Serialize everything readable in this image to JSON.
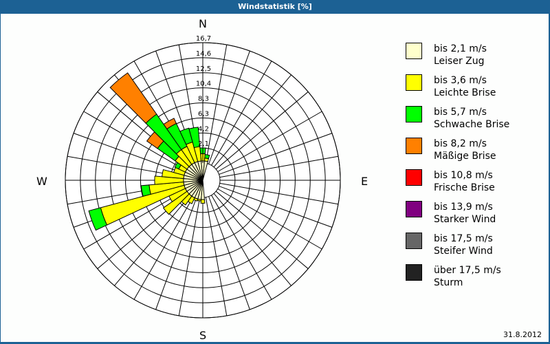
{
  "window": {
    "title": "Windstatistik [%]"
  },
  "footer": {
    "date": "31.8.2012"
  },
  "compass": {
    "n": "N",
    "e": "E",
    "s": "S",
    "w": "W"
  },
  "chart_data": {
    "type": "polar-stacked-bar (wind rose)",
    "title": "Windstatistik [%]",
    "radial_ticks": [
      "2,1",
      "4,2",
      "6,3",
      "8,3",
      "10,4",
      "12,5",
      "14,6",
      "16,7"
    ],
    "radial_max": 16.7,
    "sector_width_deg": 10,
    "classes": [
      {
        "label": "bis 2,1 m/s",
        "name": "Leiser Zug",
        "color": "#ffffcc"
      },
      {
        "label": "bis 3,6 m/s",
        "name": "Leichte Brise",
        "color": "#ffff00"
      },
      {
        "label": "bis 5,7 m/s",
        "name": "Schwache Brise",
        "color": "#00ff00"
      },
      {
        "label": "bis 8,2 m/s",
        "name": "Mäßige Brise",
        "color": "#ff8000"
      },
      {
        "label": "bis 10,8 m/s",
        "name": "Frische Brise",
        "color": "#ff0000"
      },
      {
        "label": "bis 13,9 m/s",
        "name": "Starker Wind",
        "color": "#800080"
      },
      {
        "label": "bis 17,5 m/s",
        "name": "Steifer Wind",
        "color": "#666666"
      },
      {
        "label": "über 17,5 m/s",
        "name": "Sturm",
        "color": "#222222"
      }
    ],
    "sectors": [
      {
        "dir": 0,
        "values": [
          0.3,
          1.0,
          0.8,
          0,
          0,
          0,
          0,
          0
        ]
      },
      {
        "dir": 10,
        "values": [
          0.3,
          0.4,
          0.5,
          0,
          0,
          0,
          0,
          0
        ]
      },
      {
        "dir": 180,
        "values": [
          0.3,
          0.5,
          0,
          0,
          0,
          0,
          0,
          0
        ]
      },
      {
        "dir": 190,
        "values": [
          0.3,
          0.2,
          0,
          0,
          0,
          0,
          0,
          0
        ]
      },
      {
        "dir": 200,
        "values": [
          0.3,
          0.3,
          0,
          0,
          0,
          0,
          0,
          0
        ]
      },
      {
        "dir": 210,
        "values": [
          0.3,
          0.9,
          0,
          0,
          0,
          0,
          0,
          0
        ]
      },
      {
        "dir": 220,
        "values": [
          0.3,
          1.5,
          0,
          0,
          0,
          0,
          0,
          0
        ]
      },
      {
        "dir": 230,
        "values": [
          0.3,
          4.0,
          0,
          0,
          0,
          0,
          0,
          0
        ]
      },
      {
        "dir": 240,
        "values": [
          0.3,
          2.5,
          0,
          0,
          0,
          0,
          0,
          0
        ]
      },
      {
        "dir": 250,
        "values": [
          0.3,
          12.0,
          1.7,
          0,
          0,
          0,
          0,
          0
        ]
      },
      {
        "dir": 260,
        "values": [
          0.3,
          4.8,
          1.1,
          0,
          0,
          0,
          0,
          0
        ]
      },
      {
        "dir": 270,
        "values": [
          0.3,
          4.0,
          0,
          0,
          0,
          0,
          0,
          0
        ]
      },
      {
        "dir": 280,
        "values": [
          0.3,
          3.0,
          0,
          0,
          0,
          0,
          0,
          0
        ]
      },
      {
        "dir": 290,
        "values": [
          0.3,
          1.5,
          0,
          0,
          0,
          0,
          0,
          0
        ]
      },
      {
        "dir": 300,
        "values": [
          0.3,
          1.0,
          0.6,
          0,
          0,
          0,
          0,
          0
        ]
      },
      {
        "dir": 310,
        "values": [
          0.3,
          2.0,
          3.0,
          1.8,
          0,
          0,
          0,
          0
        ]
      },
      {
        "dir": 320,
        "values": [
          0.3,
          2.5,
          6.0,
          7.0,
          0,
          0,
          0,
          0
        ]
      },
      {
        "dir": 330,
        "values": [
          0.3,
          2.5,
          3.5,
          0.8,
          0,
          0,
          0,
          0
        ]
      },
      {
        "dir": 340,
        "values": [
          0.3,
          2.8,
          2.0,
          0,
          0,
          0,
          0,
          0
        ]
      },
      {
        "dir": 350,
        "values": [
          0.3,
          2.0,
          2.7,
          0,
          0,
          0,
          0,
          0
        ]
      }
    ]
  }
}
